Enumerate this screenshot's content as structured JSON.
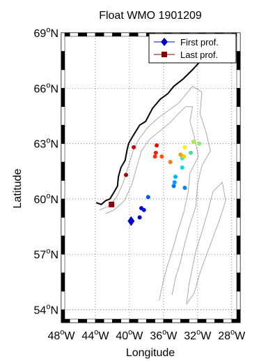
{
  "title": "Float WMO 1901209",
  "xlabel": "Longitude",
  "ylabel": "Latitude",
  "legend": {
    "placement": "top-right",
    "items": [
      {
        "label": "First prof.",
        "marker": "diamond",
        "color": "#0000cc"
      },
      {
        "label": "Last prof.",
        "marker": "square",
        "color": "#8b0000"
      }
    ]
  },
  "colors": {
    "coastline": "#000000",
    "bathymetry": "#aaaaaa",
    "grid": "#555555"
  },
  "chart_data": {
    "type": "scatter",
    "grid": true,
    "xlim": [
      -48,
      -27
    ],
    "ylim": [
      53.3,
      69
    ],
    "x_ticks": [
      {
        "value": -48,
        "label_main": "48",
        "label_sup": "o",
        "label_suffix": "W"
      },
      {
        "value": -44,
        "label_main": "44",
        "label_sup": "o",
        "label_suffix": "W"
      },
      {
        "value": -40,
        "label_main": "40",
        "label_sup": "o",
        "label_suffix": "W"
      },
      {
        "value": -36,
        "label_main": "36",
        "label_sup": "o",
        "label_suffix": "W"
      },
      {
        "value": -32,
        "label_main": "32",
        "label_sup": "o",
        "label_suffix": "W"
      },
      {
        "value": -28,
        "label_main": "28",
        "label_sup": "o",
        "label_suffix": "W"
      }
    ],
    "y_ticks": [
      {
        "value": 54,
        "label_main": "54",
        "label_sup": "o",
        "label_suffix": "N"
      },
      {
        "value": 57,
        "label_main": "57",
        "label_sup": "o",
        "label_suffix": "N"
      },
      {
        "value": 60,
        "label_main": "60",
        "label_sup": "o",
        "label_suffix": "N"
      },
      {
        "value": 63,
        "label_main": "63",
        "label_sup": "o",
        "label_suffix": "N"
      },
      {
        "value": 66,
        "label_main": "66",
        "label_sup": "o",
        "label_suffix": "N"
      },
      {
        "value": 69,
        "label_main": "69",
        "label_sup": "o",
        "label_suffix": "N"
      }
    ],
    "first_profile": {
      "lon": -39.8,
      "lat": 58.8
    },
    "last_profile": {
      "lon": -42.1,
      "lat": 59.7
    },
    "profiles": [
      {
        "lon": -38.8,
        "lat": 59.0,
        "color": "#0000cc"
      },
      {
        "lon": -38.6,
        "lat": 59.5,
        "color": "#0000dd"
      },
      {
        "lon": -38.3,
        "lat": 59.4,
        "color": "#0010ee"
      },
      {
        "lon": -37.8,
        "lat": 60.1,
        "color": "#0055ff"
      },
      {
        "lon": -34.8,
        "lat": 60.7,
        "color": "#0077ff"
      },
      {
        "lon": -34.7,
        "lat": 60.9,
        "color": "#0099ff"
      },
      {
        "lon": -34.6,
        "lat": 61.2,
        "color": "#00bbff"
      },
      {
        "lon": -33.5,
        "lat": 60.6,
        "color": "#0088ff"
      },
      {
        "lon": -33.8,
        "lat": 61.7,
        "color": "#00ddee"
      },
      {
        "lon": -33.8,
        "lat": 62.2,
        "color": "#33eecc"
      },
      {
        "lon": -32.8,
        "lat": 62.5,
        "color": "#44ddaa"
      },
      {
        "lon": -31.8,
        "lat": 63.0,
        "color": "#88ee66"
      },
      {
        "lon": -32.5,
        "lat": 63.1,
        "color": "#aaee44"
      },
      {
        "lon": -33.5,
        "lat": 62.8,
        "color": "#ffee00"
      },
      {
        "lon": -33.6,
        "lat": 62.3,
        "color": "#ffcc00"
      },
      {
        "lon": -34.0,
        "lat": 62.4,
        "color": "#ff9900"
      },
      {
        "lon": -35.2,
        "lat": 62.0,
        "color": "#ff7700"
      },
      {
        "lon": -36.2,
        "lat": 62.3,
        "color": "#ff5500"
      },
      {
        "lon": -37.0,
        "lat": 62.3,
        "color": "#ff3300"
      },
      {
        "lon": -36.9,
        "lat": 62.5,
        "color": "#ee2200"
      },
      {
        "lon": -36.8,
        "lat": 62.9,
        "color": "#dd1100"
      },
      {
        "lon": -39.5,
        "lat": 62.8,
        "color": "#cc0000"
      },
      {
        "lon": -40.4,
        "lat": 61.3,
        "color": "#aa0000"
      }
    ],
    "coastline": [
      [
        -43.9,
        59.8
      ],
      [
        -43.3,
        59.7
      ],
      [
        -42.8,
        59.9
      ],
      [
        -42.3,
        60.0
      ],
      [
        -41.9,
        60.3
      ],
      [
        -41.4,
        60.7
      ],
      [
        -41.3,
        61.2
      ],
      [
        -41.0,
        61.7
      ],
      [
        -40.5,
        62.1
      ],
      [
        -40.3,
        62.6
      ],
      [
        -40.1,
        63.0
      ],
      [
        -39.6,
        63.4
      ],
      [
        -39.2,
        63.7
      ],
      [
        -38.8,
        64.0
      ],
      [
        -38.1,
        64.2
      ],
      [
        -37.3,
        64.9
      ],
      [
        -36.4,
        65.4
      ],
      [
        -35.5,
        65.7
      ],
      [
        -34.8,
        66.1
      ],
      [
        -33.7,
        66.5
      ],
      [
        -32.6,
        67.0
      ],
      [
        -31.6,
        67.5
      ],
      [
        -30.6,
        67.9
      ],
      [
        -29.8,
        68.3
      ],
      [
        -29.4,
        68.6
      ],
      [
        -29.0,
        68.7
      ],
      [
        -28.3,
        69.0
      ]
    ],
    "bathymetry_contours": [
      [
        [
          -43.5,
          59.4
        ],
        [
          -42.5,
          59.6
        ],
        [
          -41.5,
          60.1
        ],
        [
          -40.8,
          60.8
        ],
        [
          -40.1,
          61.8
        ],
        [
          -39.5,
          62.7
        ],
        [
          -38.8,
          63.3
        ],
        [
          -37.8,
          63.9
        ],
        [
          -36.6,
          64.4
        ],
        [
          -35.4,
          64.8
        ],
        [
          -34.2,
          65.2
        ],
        [
          -33.5,
          65.6
        ],
        [
          -32.6,
          66.1
        ],
        [
          -31.5,
          65.8
        ],
        [
          -31.7,
          64.6
        ],
        [
          -31.0,
          63.6
        ],
        [
          -30.5,
          62.6
        ],
        [
          -31.5,
          61.8
        ],
        [
          -32.0,
          60.8
        ],
        [
          -32.2,
          59.6
        ],
        [
          -32.9,
          58.6
        ],
        [
          -33.5,
          57.6
        ],
        [
          -34.0,
          56.6
        ],
        [
          -34.6,
          55.7
        ],
        [
          -35.0,
          54.8
        ]
      ],
      [
        [
          -42.8,
          59.2
        ],
        [
          -41.8,
          59.4
        ],
        [
          -40.6,
          59.9
        ],
        [
          -39.7,
          60.8
        ],
        [
          -39.1,
          61.8
        ],
        [
          -38.6,
          62.6
        ],
        [
          -37.7,
          63.2
        ],
        [
          -36.4,
          63.7
        ],
        [
          -35.3,
          64.1
        ],
        [
          -34.3,
          64.6
        ],
        [
          -33.4,
          65.0
        ],
        [
          -32.6,
          65.0
        ],
        [
          -32.9,
          64.2
        ],
        [
          -32.4,
          63.4
        ],
        [
          -31.9,
          62.3
        ],
        [
          -32.9,
          61.4
        ],
        [
          -33.1,
          60.4
        ],
        [
          -33.6,
          59.3
        ],
        [
          -34.3,
          58.3
        ],
        [
          -34.9,
          57.3
        ],
        [
          -35.6,
          56.3
        ],
        [
          -36.1,
          55.4
        ],
        [
          -36.5,
          54.5
        ]
      ],
      [
        [
          -30.2,
          60.4
        ],
        [
          -30.8,
          59.3
        ],
        [
          -31.5,
          58.2
        ],
        [
          -32.2,
          57.2
        ],
        [
          -32.6,
          56.3
        ],
        [
          -33.0,
          55.4
        ],
        [
          -33.3,
          54.3
        ],
        [
          -32.4,
          54.9
        ],
        [
          -31.8,
          55.9
        ],
        [
          -31.0,
          56.9
        ],
        [
          -30.2,
          57.9
        ],
        [
          -29.4,
          58.9
        ],
        [
          -28.7,
          59.9
        ],
        [
          -29.1,
          60.9
        ],
        [
          -30.2,
          60.4
        ]
      ]
    ]
  }
}
